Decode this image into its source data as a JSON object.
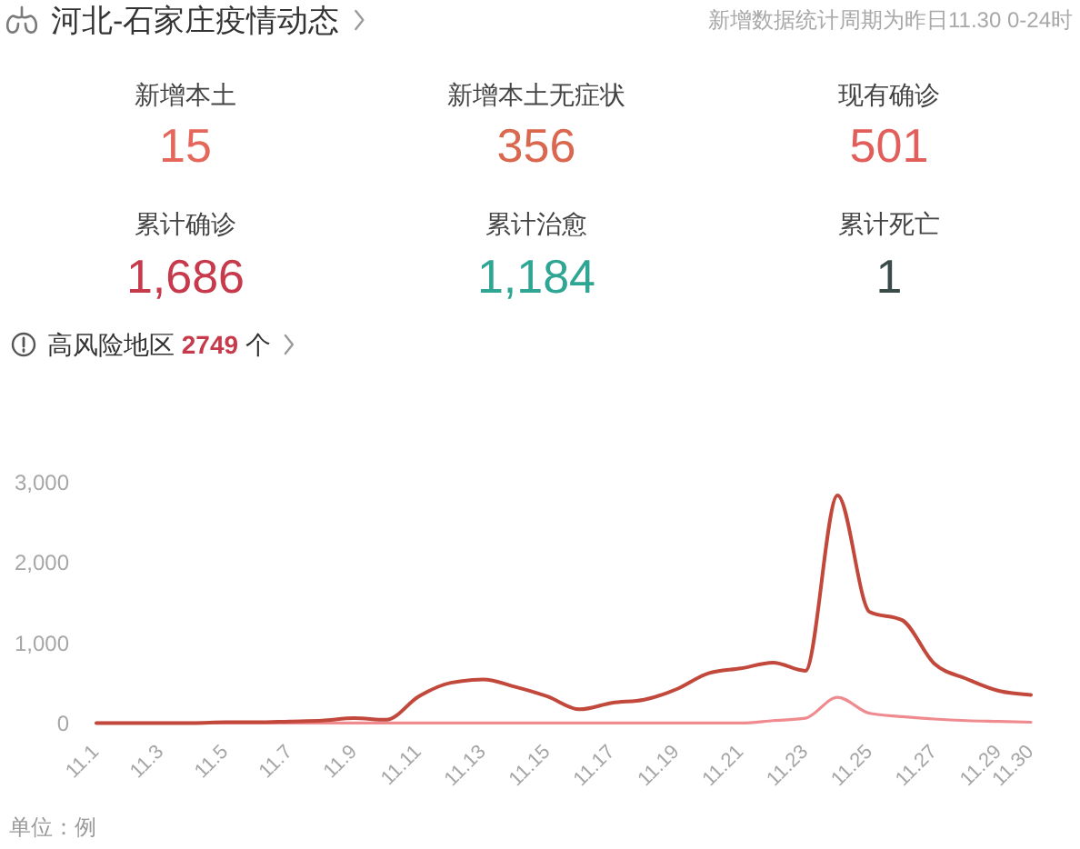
{
  "chart_data": [
    {
      "type": "other",
      "title": "河北-石家庄疫情动态",
      "subtitle": "新增数据统计周期为昨日11.30 0-24时",
      "categories": [
        "新增本土",
        "新增本土无症状",
        "现有确诊",
        "累计确诊",
        "累计治愈",
        "累计死亡"
      ],
      "value_labels": [
        "15",
        "356",
        "501",
        "1,686",
        "1,184",
        "1"
      ],
      "colors": [
        "#e5675c",
        "#d9684f",
        "#e25e5a",
        "#c63a4b",
        "#2fa593",
        "#3b4b49"
      ]
    },
    {
      "type": "line",
      "title": "高风险地区 2749 个",
      "categories": [
        "11.1",
        null,
        "11.3",
        null,
        "11.5",
        null,
        "11.7",
        null,
        "11.9",
        null,
        "11.11",
        null,
        "11.13",
        null,
        "11.15",
        null,
        "11.17",
        null,
        "11.19",
        null,
        "11.21",
        null,
        "11.23",
        null,
        "11.25",
        null,
        "11.27",
        null,
        "11.29",
        "11.30"
      ],
      "series": [
        {
          "color": "#c1483b",
          "values": [
            0,
            0,
            0,
            0,
            10,
            10,
            20,
            30,
            60,
            40,
            330,
            500,
            540,
            450,
            330,
            170,
            250,
            290,
            420,
            620,
            680,
            750,
            650,
            2830,
            1380,
            1280,
            740,
            550,
            400,
            350
          ]
        },
        {
          "color": "#ef8a8f",
          "values": [
            0,
            0,
            0,
            0,
            0,
            0,
            0,
            0,
            0,
            0,
            0,
            0,
            0,
            0,
            0,
            0,
            0,
            0,
            0,
            0,
            0,
            30,
            60,
            320,
            120,
            80,
            50,
            30,
            20,
            10
          ]
        }
      ],
      "ylim": [
        0,
        3000
      ],
      "yticks": [
        0,
        {
          "value": 1000,
          "label": "1,000"
        },
        {
          "value": 2000,
          "label": "2,000"
        },
        {
          "value": 3000,
          "label": "3,000"
        }
      ],
      "annotations": [
        "单位：例"
      ]
    }
  ]
}
